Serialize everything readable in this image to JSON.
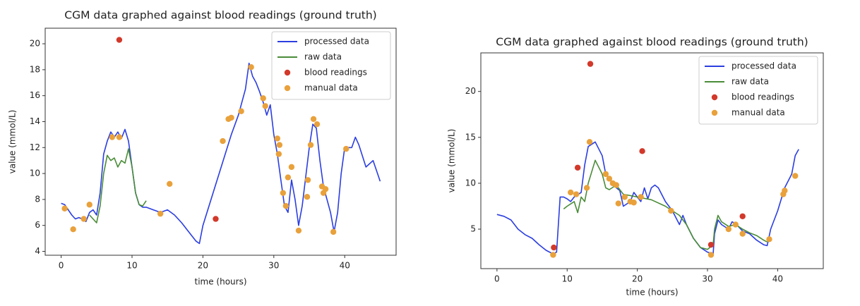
{
  "chart_data": [
    {
      "type": "line",
      "title": "CGM data graphed against blood readings (ground truth)",
      "x_label": "time (hours)",
      "y_label": "value (mmol/L)",
      "xlim": [
        -2.25,
        47.25
      ],
      "ylim": [
        3.7,
        21.2
      ],
      "xticks": [
        0,
        10,
        20,
        30,
        40
      ],
      "yticks": [
        4,
        6,
        8,
        10,
        12,
        14,
        16,
        18,
        20
      ],
      "legend": "upper right",
      "series": [
        {
          "name": "processed data",
          "color": "#2b3ee0",
          "mode": "line",
          "x": [
            0,
            0.5,
            1,
            1.5,
            2,
            2.5,
            3,
            3.5,
            4,
            4.5,
            5,
            5.5,
            6,
            6.5,
            7,
            7.5,
            8,
            8.5,
            9,
            9.5,
            10,
            10.5,
            11,
            11.5,
            12,
            13,
            14,
            15,
            16,
            17,
            18,
            19,
            19.5,
            20,
            22,
            24,
            25,
            26,
            26.5,
            27,
            27.5,
            28,
            28.5,
            29,
            29.5,
            30,
            30.5,
            31,
            31.5,
            32,
            32.5,
            33,
            33.5,
            34,
            35,
            35.5,
            36,
            36.5,
            37,
            38,
            38.5,
            39,
            39.5,
            40,
            41,
            41.5,
            42,
            43,
            44,
            44.5,
            45
          ],
          "values": [
            7.7,
            7.6,
            7.2,
            6.8,
            6.5,
            6.6,
            6.5,
            6.3,
            7.0,
            7.2,
            6.8,
            8.5,
            11.5,
            12.5,
            13.2,
            12.8,
            13.2,
            12.7,
            13.4,
            12.5,
            10.5,
            8.5,
            7.6,
            7.4,
            7.4,
            7.2,
            7.0,
            7.2,
            6.8,
            6.2,
            5.5,
            4.8,
            4.6,
            6.0,
            9.5,
            13.0,
            14.5,
            16.5,
            18.5,
            17.5,
            17.0,
            16.3,
            15.5,
            14.5,
            15.3,
            13.0,
            11.5,
            9.5,
            7.5,
            7.0,
            9.5,
            8.0,
            6.0,
            7.5,
            12.0,
            13.8,
            13.5,
            11.0,
            9.0,
            7.0,
            5.5,
            7.0,
            10.0,
            12.0,
            12.0,
            12.8,
            12.2,
            10.5,
            11.0,
            10.2,
            9.4
          ]
        },
        {
          "name": "raw data",
          "color": "#4a8c38",
          "mode": "line",
          "x": [
            4,
            4.5,
            5,
            5.5,
            6,
            6.5,
            7,
            7.5,
            8,
            8.5,
            9,
            9.5,
            10,
            10.5,
            11,
            11.5,
            12
          ],
          "values": [
            6.8,
            6.5,
            6.2,
            7.5,
            10.0,
            11.4,
            11.0,
            11.2,
            10.5,
            11.0,
            10.8,
            11.9,
            10.5,
            8.5,
            7.6,
            7.5,
            7.9
          ]
        },
        {
          "name": "blood readings",
          "color": "#d2392b",
          "mode": "scatter",
          "x": [
            8.2,
            21.8
          ],
          "values": [
            20.3,
            6.5
          ]
        },
        {
          "name": "manual data",
          "color": "#e9a13b",
          "mode": "scatter",
          "x": [
            0.5,
            1.7,
            3.2,
            4,
            7.2,
            8.2,
            15.3,
            14,
            22.8,
            23.6,
            24,
            25.4,
            26.8,
            28.5,
            28.8,
            30.5,
            30.8,
            30.7,
            31.3,
            31.7,
            32,
            32.5,
            33.5,
            34.7,
            34.8,
            35.2,
            35.6,
            36.1,
            36.8,
            37,
            37.3,
            38.4,
            40.2
          ],
          "values": [
            7.3,
            5.7,
            6.5,
            7.6,
            12.8,
            12.8,
            9.2,
            6.9,
            12.5,
            14.2,
            14.3,
            14.8,
            18.2,
            15.8,
            15.2,
            12.7,
            12.2,
            11.5,
            8.5,
            7.5,
            9.7,
            10.5,
            5.6,
            8.2,
            9.5,
            12.2,
            14.2,
            13.8,
            9.0,
            8.5,
            8.8,
            5.5,
            11.9
          ]
        }
      ]
    },
    {
      "type": "line",
      "title": "CGM data graphed against blood readings (ground truth)",
      "x_label": "time (hours)",
      "y_label": "value (mmol/L)",
      "xlim": [
        -2.3,
        46.5
      ],
      "ylim": [
        0.7,
        24.2
      ],
      "xticks": [
        0,
        10,
        20,
        30,
        40
      ],
      "yticks": [
        5,
        10,
        15,
        20
      ],
      "legend": "upper right",
      "series": [
        {
          "name": "processed data",
          "color": "#2b3ee0",
          "mode": "line",
          "x": [
            0,
            1,
            2,
            3,
            4,
            5,
            6,
            7,
            8,
            8.5,
            9,
            9.5,
            10,
            10.5,
            11,
            12,
            12.5,
            13,
            14,
            15,
            15.5,
            16,
            17,
            17.5,
            18,
            19,
            19.5,
            20,
            20.5,
            21,
            21.5,
            22,
            22.5,
            23,
            24,
            25,
            26,
            26.5,
            27,
            28,
            29,
            30,
            30.8,
            31,
            31.5,
            32,
            33,
            33.5,
            34,
            35,
            36,
            37,
            38,
            38.5,
            39,
            40,
            41,
            42,
            42.5,
            43
          ],
          "values": [
            6.6,
            6.4,
            6.0,
            5.0,
            4.4,
            4.0,
            3.3,
            2.7,
            2.3,
            2.5,
            8.5,
            8.5,
            8.3,
            8.0,
            8.5,
            9.0,
            12.0,
            14.0,
            14.5,
            13.0,
            11.0,
            10.5,
            9.5,
            9.2,
            7.5,
            8.0,
            9.0,
            8.5,
            8.0,
            9.5,
            8.3,
            9.5,
            9.8,
            9.5,
            8.0,
            7.0,
            5.5,
            6.5,
            5.5,
            4.0,
            3.0,
            2.5,
            2.3,
            4.5,
            6.0,
            5.5,
            5.0,
            5.8,
            5.6,
            4.8,
            4.5,
            3.8,
            3.3,
            3.2,
            5.0,
            7.0,
            9.5,
            11.0,
            13.0,
            13.7
          ]
        },
        {
          "name": "raw data",
          "color": "#4a8c38",
          "mode": "line",
          "x": [
            9.5,
            10,
            11,
            11.5,
            12,
            12.5,
            13,
            14,
            15,
            15.5,
            16,
            17,
            18,
            20,
            22,
            24,
            25,
            26,
            27,
            28,
            29,
            30,
            30.8,
            31,
            31.5,
            32,
            33,
            34,
            35,
            36,
            37,
            38,
            38.5
          ],
          "values": [
            7.2,
            7.5,
            8.0,
            6.8,
            8.5,
            8.0,
            10.0,
            12.5,
            11.0,
            9.5,
            9.3,
            9.8,
            8.8,
            8.5,
            8.2,
            7.5,
            7.0,
            6.5,
            5.5,
            4.0,
            3.0,
            2.8,
            3.3,
            5.0,
            6.5,
            5.8,
            5.3,
            5.5,
            5.0,
            4.6,
            4.3,
            3.8,
            3.6
          ]
        },
        {
          "name": "blood readings",
          "color": "#d2392b",
          "mode": "scatter",
          "x": [
            8.1,
            11.5,
            13.3,
            20.7,
            30.5,
            35
          ],
          "values": [
            3.0,
            11.7,
            23.0,
            13.5,
            3.3,
            6.4
          ]
        },
        {
          "name": "manual data",
          "color": "#e9a13b",
          "mode": "scatter",
          "x": [
            8,
            10.5,
            11.3,
            12.8,
            13.2,
            15.5,
            16,
            16.5,
            17,
            17.3,
            18.2,
            19,
            19.5,
            20.5,
            24.8,
            30.5,
            33,
            34,
            35,
            38.8,
            40.8,
            41,
            42.5
          ],
          "values": [
            2.2,
            9.0,
            8.8,
            9.5,
            14.5,
            11.0,
            10.5,
            10.0,
            9.8,
            7.8,
            8.5,
            8.0,
            7.9,
            8.5,
            7.0,
            2.2,
            5.0,
            5.5,
            4.5,
            3.9,
            8.8,
            9.2,
            10.8
          ]
        }
      ]
    }
  ]
}
